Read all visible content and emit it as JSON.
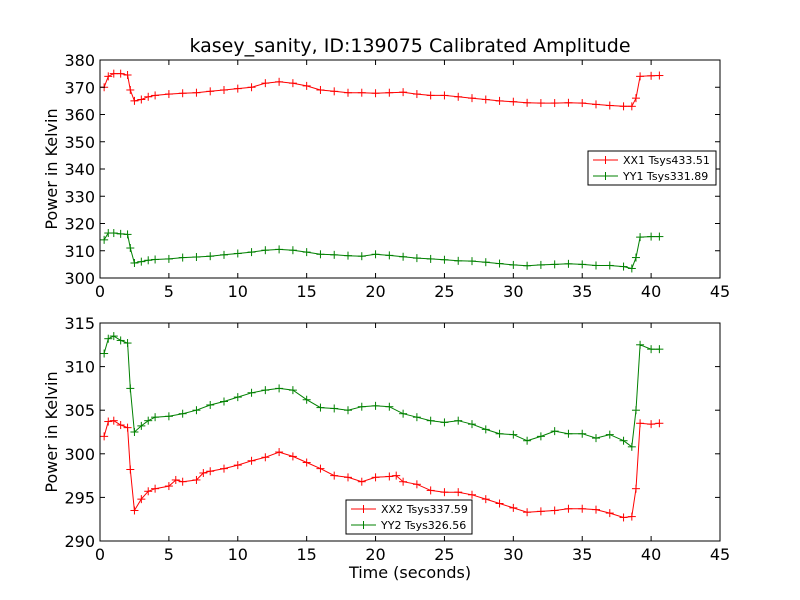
{
  "chart_data": [
    {
      "type": "line",
      "title": "kasey_sanity, ID:139075 Calibrated Amplitude",
      "xlabel": "",
      "ylabel": "Power in Kelvin",
      "xlim": [
        0,
        45
      ],
      "ylim": [
        300,
        380
      ],
      "xticks": [
        "0",
        "5",
        "10",
        "15",
        "20",
        "25",
        "30",
        "35",
        "40",
        "45"
      ],
      "yticks": [
        "300",
        "310",
        "320",
        "330",
        "340",
        "350",
        "360",
        "370",
        "380"
      ],
      "legend_position": "right",
      "grid": false,
      "marker": "plus",
      "series": [
        {
          "name": "XX1 Tsys433.51",
          "color": "#ff0000",
          "points": [
            [
              0.3,
              370
            ],
            [
              0.6,
              374
            ],
            [
              1,
              375
            ],
            [
              1.5,
              375
            ],
            [
              2,
              374.5
            ],
            [
              2.2,
              369
            ],
            [
              2.5,
              365
            ],
            [
              3,
              365.5
            ],
            [
              3.5,
              366.5
            ],
            [
              4,
              367
            ],
            [
              5,
              367.5
            ],
            [
              6,
              367.8
            ],
            [
              7,
              368
            ],
            [
              8,
              368.5
            ],
            [
              9,
              369
            ],
            [
              10,
              369.5
            ],
            [
              11,
              370
            ],
            [
              12,
              371.5
            ],
            [
              13,
              372
            ],
            [
              14,
              371.5
            ],
            [
              15,
              370.5
            ],
            [
              16,
              369
            ],
            [
              17,
              368.5
            ],
            [
              18,
              368
            ],
            [
              19,
              368
            ],
            [
              20,
              367.8
            ],
            [
              21,
              368
            ],
            [
              22,
              368.2
            ],
            [
              23,
              367.5
            ],
            [
              24,
              367
            ],
            [
              25,
              367
            ],
            [
              26,
              366.5
            ],
            [
              27,
              366
            ],
            [
              28,
              365.5
            ],
            [
              29,
              365
            ],
            [
              30,
              364.7
            ],
            [
              31,
              364.3
            ],
            [
              32,
              364.2
            ],
            [
              33,
              364.2
            ],
            [
              34,
              364.3
            ],
            [
              35,
              364.2
            ],
            [
              36,
              363.7
            ],
            [
              37,
              363.3
            ],
            [
              38,
              363
            ],
            [
              38.6,
              363
            ],
            [
              38.9,
              366
            ],
            [
              39.2,
              374
            ],
            [
              40,
              374.2
            ],
            [
              40.6,
              374.3
            ]
          ]
        },
        {
          "name": "YY1 Tsys331.89",
          "color": "#008000",
          "points": [
            [
              0.3,
              314
            ],
            [
              0.6,
              316.5
            ],
            [
              1,
              316.5
            ],
            [
              1.5,
              316.2
            ],
            [
              2,
              316
            ],
            [
              2.2,
              311
            ],
            [
              2.5,
              305.5
            ],
            [
              3,
              306
            ],
            [
              3.5,
              306.5
            ],
            [
              4,
              306.8
            ],
            [
              5,
              307
            ],
            [
              6,
              307.5
            ],
            [
              7,
              307.7
            ],
            [
              8,
              308
            ],
            [
              9,
              308.5
            ],
            [
              10,
              309
            ],
            [
              11,
              309.5
            ],
            [
              12,
              310.2
            ],
            [
              13,
              310.5
            ],
            [
              14,
              310.2
            ],
            [
              15,
              309.5
            ],
            [
              16,
              308.7
            ],
            [
              17,
              308.5
            ],
            [
              18,
              308.2
            ],
            [
              19,
              308
            ],
            [
              20,
              308.7
            ],
            [
              21,
              308.3
            ],
            [
              22,
              307.8
            ],
            [
              23,
              307.3
            ],
            [
              24,
              307
            ],
            [
              25,
              306.7
            ],
            [
              26,
              306.3
            ],
            [
              27,
              306.2
            ],
            [
              28,
              305.8
            ],
            [
              29,
              305.3
            ],
            [
              30,
              304.8
            ],
            [
              31,
              304.5
            ],
            [
              32,
              304.8
            ],
            [
              33,
              305
            ],
            [
              34,
              305.2
            ],
            [
              35,
              305
            ],
            [
              36,
              304.6
            ],
            [
              37,
              304.6
            ],
            [
              38,
              304.2
            ],
            [
              38.6,
              303.5
            ],
            [
              38.9,
              307.5
            ],
            [
              39.2,
              315
            ],
            [
              40,
              315.2
            ],
            [
              40.6,
              315.2
            ]
          ]
        }
      ]
    },
    {
      "type": "line",
      "title": "",
      "xlabel": "Time (seconds)",
      "ylabel": "Power in Kelvin",
      "xlim": [
        0,
        45
      ],
      "ylim": [
        290,
        315
      ],
      "xticks": [
        "0",
        "5",
        "10",
        "15",
        "20",
        "25",
        "30",
        "35",
        "40",
        "45"
      ],
      "yticks": [
        "290",
        "295",
        "300",
        "305",
        "310",
        "315"
      ],
      "legend_position": "bottom-center",
      "grid": false,
      "marker": "plus",
      "series": [
        {
          "name": "XX2 Tsys337.59",
          "color": "#ff0000",
          "points": [
            [
              0.3,
              302
            ],
            [
              0.6,
              303.7
            ],
            [
              1,
              303.8
            ],
            [
              1.5,
              303.3
            ],
            [
              2,
              303
            ],
            [
              2.2,
              298.2
            ],
            [
              2.5,
              293.5
            ],
            [
              3,
              294.8
            ],
            [
              3.5,
              295.7
            ],
            [
              4,
              296
            ],
            [
              5,
              296.3
            ],
            [
              5.5,
              297
            ],
            [
              6,
              296.8
            ],
            [
              7,
              297
            ],
            [
              7.5,
              297.8
            ],
            [
              8,
              298
            ],
            [
              9,
              298.3
            ],
            [
              10,
              298.7
            ],
            [
              11,
              299.2
            ],
            [
              12,
              299.6
            ],
            [
              13,
              300.2
            ],
            [
              14,
              299.7
            ],
            [
              15,
              299
            ],
            [
              16,
              298.3
            ],
            [
              17,
              297.5
            ],
            [
              18,
              297.3
            ],
            [
              19,
              296.8
            ],
            [
              20,
              297.3
            ],
            [
              21,
              297.4
            ],
            [
              21.5,
              297.5
            ],
            [
              22,
              296.8
            ],
            [
              23,
              296.5
            ],
            [
              24,
              295.8
            ],
            [
              25,
              295.6
            ],
            [
              26,
              295.6
            ],
            [
              27,
              295.3
            ],
            [
              28,
              294.8
            ],
            [
              29,
              294.3
            ],
            [
              30,
              293.8
            ],
            [
              31,
              293.3
            ],
            [
              32,
              293.4
            ],
            [
              33,
              293.5
            ],
            [
              34,
              293.7
            ],
            [
              35,
              293.7
            ],
            [
              36,
              293.6
            ],
            [
              37,
              293.2
            ],
            [
              38,
              292.7
            ],
            [
              38.6,
              292.8
            ],
            [
              38.9,
              296
            ],
            [
              39.2,
              303.5
            ],
            [
              40,
              303.4
            ],
            [
              40.6,
              303.5
            ]
          ]
        },
        {
          "name": "YY2 Tsys326.56",
          "color": "#008000",
          "points": [
            [
              0.3,
              311.5
            ],
            [
              0.6,
              313.2
            ],
            [
              1,
              313.5
            ],
            [
              1.5,
              313
            ],
            [
              2,
              312.7
            ],
            [
              2.2,
              307.5
            ],
            [
              2.5,
              302.5
            ],
            [
              3,
              303.2
            ],
            [
              3.5,
              303.8
            ],
            [
              4,
              304.2
            ],
            [
              5,
              304.3
            ],
            [
              6,
              304.6
            ],
            [
              7,
              305
            ],
            [
              8,
              305.6
            ],
            [
              9,
              306
            ],
            [
              10,
              306.5
            ],
            [
              11,
              307
            ],
            [
              12,
              307.3
            ],
            [
              13,
              307.5
            ],
            [
              14,
              307.3
            ],
            [
              15,
              306.2
            ],
            [
              16,
              305.3
            ],
            [
              17,
              305.2
            ],
            [
              18,
              305
            ],
            [
              19,
              305.4
            ],
            [
              20,
              305.5
            ],
            [
              21,
              305.4
            ],
            [
              22,
              304.6
            ],
            [
              23,
              304.2
            ],
            [
              24,
              303.8
            ],
            [
              25,
              303.6
            ],
            [
              26,
              303.8
            ],
            [
              27,
              303.4
            ],
            [
              28,
              302.8
            ],
            [
              29,
              302.3
            ],
            [
              30,
              302.2
            ],
            [
              31,
              301.5
            ],
            [
              32,
              302
            ],
            [
              33,
              302.6
            ],
            [
              34,
              302.3
            ],
            [
              35,
              302.3
            ],
            [
              36,
              301.8
            ],
            [
              37,
              302.2
            ],
            [
              38,
              301.5
            ],
            [
              38.6,
              300.8
            ],
            [
              38.9,
              305
            ],
            [
              39.2,
              312.5
            ],
            [
              40,
              312
            ],
            [
              40.6,
              312
            ]
          ]
        }
      ]
    }
  ]
}
